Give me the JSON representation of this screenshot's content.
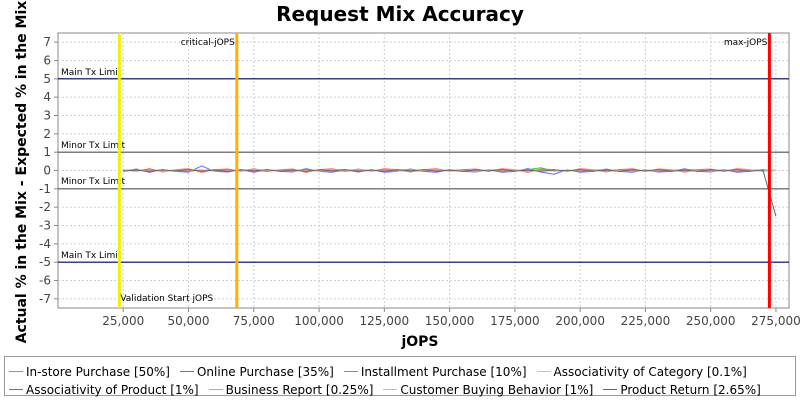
{
  "chart_data": {
    "type": "line",
    "title": "Request Mix Accuracy",
    "xlabel": "jOPS",
    "ylabel": "Actual % in the Mix - Expected % in the Mix",
    "xlim": [
      0,
      280000
    ],
    "ylim": [
      -7.5,
      7.5
    ],
    "xticks": [
      25000,
      50000,
      75000,
      100000,
      125000,
      150000,
      175000,
      200000,
      225000,
      250000,
      275000
    ],
    "xtick_labels": [
      "25,000",
      "50,000",
      "75,000",
      "100,000",
      "125,000",
      "150,000",
      "175,000",
      "200,000",
      "225,000",
      "250,000",
      "275,000"
    ],
    "yticks": [
      7,
      6,
      5,
      4,
      3,
      2,
      1,
      0,
      -1,
      -2,
      -3,
      -4,
      -5,
      -6,
      -7
    ],
    "ytick_labels": [
      "7",
      "6",
      "5",
      "4",
      "3",
      "2",
      "1",
      "0",
      "-1",
      "-2",
      "-3",
      "-4",
      "-5",
      "-6",
      "-7"
    ],
    "grid": true,
    "legend_position": "bottom",
    "limit_lines": [
      {
        "label": "Main Tx Limit",
        "y": 5,
        "color": "#000066"
      },
      {
        "label": "Minor Tx Limit",
        "y": 1,
        "color": "#555555"
      },
      {
        "label": "Minor Tx Limit",
        "y": -1,
        "color": "#555555"
      },
      {
        "label": "Main Tx Limit",
        "y": -5,
        "color": "#000066"
      }
    ],
    "vertical_markers": [
      {
        "label": "Validation Start jOPS",
        "x": 23500,
        "color": "#f0f000"
      },
      {
        "label": "critical-jOPS",
        "x": 68500,
        "color": "#ffb000"
      },
      {
        "label": "max-jOPS",
        "x": 272500,
        "color": "#ff0000"
      }
    ],
    "x": [
      25000,
      30000,
      35000,
      40000,
      45000,
      50000,
      55000,
      60000,
      65000,
      70000,
      75000,
      80000,
      85000,
      90000,
      95000,
      100000,
      105000,
      110000,
      115000,
      120000,
      125000,
      130000,
      135000,
      140000,
      145000,
      150000,
      155000,
      160000,
      165000,
      170000,
      175000,
      180000,
      185000,
      190000,
      195000,
      200000,
      205000,
      210000,
      215000,
      220000,
      225000,
      230000,
      235000,
      240000,
      245000,
      250000,
      255000,
      260000,
      265000,
      270000,
      275000
    ],
    "series": [
      {
        "name": "In-store Purchase [50%]",
        "color": "#ff6666",
        "values": [
          0.05,
          -0.05,
          0.1,
          -0.08,
          0.05,
          0.1,
          -0.1,
          0.05,
          0.08,
          -0.05,
          0.1,
          -0.05,
          0.05,
          0.08,
          -0.1,
          0.05,
          0.1,
          -0.05,
          0.08,
          -0.05,
          0.1,
          0.05,
          -0.08,
          0.05,
          0.1,
          -0.05,
          0.05,
          0.08,
          -0.05,
          0.1,
          0.05,
          -0.1,
          0.08,
          0.05,
          -0.05,
          0.1,
          0.05,
          -0.08,
          0.05,
          0.1,
          -0.05,
          0.08,
          0.05,
          -0.1,
          0.05,
          0.08,
          -0.05,
          0.1,
          0.05,
          -0.05,
          0.0
        ]
      },
      {
        "name": "Online Purchase [35%]",
        "color": "#6666ff",
        "values": [
          -0.05,
          0.08,
          -0.1,
          0.05,
          -0.05,
          -0.1,
          0.25,
          -0.05,
          -0.08,
          0.05,
          -0.1,
          0.05,
          -0.05,
          -0.08,
          0.1,
          -0.05,
          -0.1,
          0.05,
          -0.08,
          0.05,
          -0.1,
          -0.05,
          0.08,
          -0.05,
          -0.1,
          0.05,
          -0.05,
          -0.08,
          0.05,
          -0.1,
          -0.05,
          0.1,
          -0.08,
          -0.2,
          0.05,
          -0.1,
          -0.05,
          0.08,
          -0.05,
          -0.1,
          0.05,
          -0.08,
          -0.05,
          0.1,
          -0.05,
          -0.08,
          0.05,
          -0.1,
          -0.05,
          0.05,
          0.0
        ]
      },
      {
        "name": "Installment Purchase [10%]",
        "color": "#33cc33",
        "values": [
          0.02,
          0.05,
          -0.03,
          0.04,
          -0.05,
          0.03,
          -0.02,
          0.05,
          -0.04,
          0.03,
          0.02,
          -0.05,
          0.04,
          -0.03,
          0.05,
          -0.02,
          0.03,
          0.05,
          -0.04,
          0.02,
          -0.05,
          0.03,
          0.04,
          -0.02,
          0.05,
          -0.03,
          0.02,
          -0.05,
          0.04,
          0.03,
          -0.02,
          0.05,
          0.15,
          -0.04,
          0.02,
          -0.05,
          0.03,
          0.04,
          -0.02,
          0.05,
          -0.03,
          0.02,
          -0.05,
          0.04,
          0.03,
          -0.02,
          0.05,
          -0.04,
          0.02,
          0.03,
          0.0
        ]
      },
      {
        "name": "Associativity of Category [0.1%]",
        "color": "#dddd00",
        "values": [
          0.0,
          0.02,
          0.0,
          -0.02,
          0.0,
          0.02,
          0.0,
          -0.02,
          0.0,
          0.02,
          0.0,
          -0.02,
          0.0,
          0.02,
          0.0,
          -0.02,
          0.0,
          0.02,
          0.0,
          -0.02,
          0.0,
          0.02,
          0.0,
          -0.02,
          0.0,
          0.02,
          0.0,
          -0.02,
          0.0,
          0.02,
          0.0,
          -0.02,
          0.0,
          0.02,
          0.0,
          -0.02,
          0.0,
          0.02,
          0.0,
          -0.02,
          0.0,
          0.02,
          0.0,
          -0.02,
          0.0,
          0.02,
          0.0,
          -0.02,
          0.0,
          0.02,
          0.0
        ]
      },
      {
        "name": "Associativity of Product [1%]",
        "color": "#cc33cc",
        "values": [
          0.03,
          -0.02,
          0.04,
          -0.03,
          0.02,
          -0.04,
          0.03,
          -0.02,
          0.04,
          -0.03,
          0.02,
          -0.04,
          0.03,
          -0.02,
          0.04,
          -0.03,
          0.02,
          -0.04,
          0.03,
          -0.02,
          0.04,
          -0.03,
          0.02,
          -0.04,
          0.03,
          -0.02,
          0.04,
          -0.03,
          0.02,
          -0.04,
          0.03,
          -0.02,
          0.04,
          -0.03,
          0.02,
          -0.04,
          0.03,
          -0.02,
          0.04,
          -0.03,
          0.02,
          -0.04,
          0.03,
          -0.02,
          0.04,
          -0.03,
          0.02,
          -0.04,
          0.03,
          -0.02,
          0.0
        ]
      },
      {
        "name": "Business Report [0.25%]",
        "color": "#33dddd",
        "values": [
          -0.02,
          0.03,
          -0.04,
          0.02,
          -0.03,
          0.04,
          -0.02,
          0.03,
          -0.04,
          0.02,
          -0.03,
          0.04,
          -0.02,
          0.03,
          -0.04,
          0.02,
          -0.03,
          0.04,
          -0.02,
          0.03,
          -0.04,
          0.02,
          -0.03,
          0.04,
          -0.02,
          0.03,
          -0.04,
          0.02,
          -0.03,
          0.04,
          -0.02,
          0.03,
          -0.04,
          0.02,
          -0.03,
          0.04,
          -0.02,
          0.03,
          -0.04,
          0.02,
          -0.03,
          0.04,
          -0.02,
          0.03,
          -0.04,
          0.02,
          -0.03,
          0.04,
          -0.02,
          0.03,
          0.0
        ]
      },
      {
        "name": "Customer Buying Behavior [1%]",
        "color": "#ffaa88",
        "values": [
          0.04,
          -0.03,
          0.02,
          -0.04,
          0.03,
          -0.02,
          0.04,
          -0.03,
          0.02,
          -0.04,
          0.03,
          -0.02,
          0.04,
          -0.03,
          0.02,
          -0.04,
          0.03,
          -0.02,
          0.04,
          -0.03,
          0.02,
          -0.04,
          0.03,
          -0.02,
          0.04,
          -0.03,
          0.02,
          -0.04,
          0.03,
          -0.02,
          0.04,
          -0.03,
          0.02,
          -0.04,
          0.03,
          -0.02,
          0.04,
          -0.03,
          0.02,
          -0.04,
          0.03,
          -0.02,
          0.04,
          -0.03,
          0.02,
          -0.04,
          0.03,
          -0.02,
          0.04,
          -0.03,
          0.0
        ]
      },
      {
        "name": "Product Return [2.65%]",
        "color": "#666666",
        "values": [
          -0.03,
          0.02,
          -0.04,
          0.03,
          -0.02,
          0.04,
          -0.03,
          0.02,
          -0.04,
          0.03,
          -0.02,
          0.04,
          -0.03,
          0.02,
          -0.04,
          0.03,
          -0.02,
          0.04,
          -0.03,
          0.02,
          -0.04,
          0.03,
          -0.02,
          0.04,
          -0.03,
          0.02,
          -0.04,
          0.03,
          -0.02,
          0.04,
          -0.03,
          0.02,
          -0.04,
          0.03,
          -0.02,
          0.04,
          -0.03,
          0.02,
          -0.04,
          0.03,
          -0.02,
          0.04,
          -0.03,
          0.02,
          -0.04,
          0.03,
          -0.02,
          0.04,
          -0.03,
          0.02,
          -2.5
        ]
      }
    ]
  }
}
